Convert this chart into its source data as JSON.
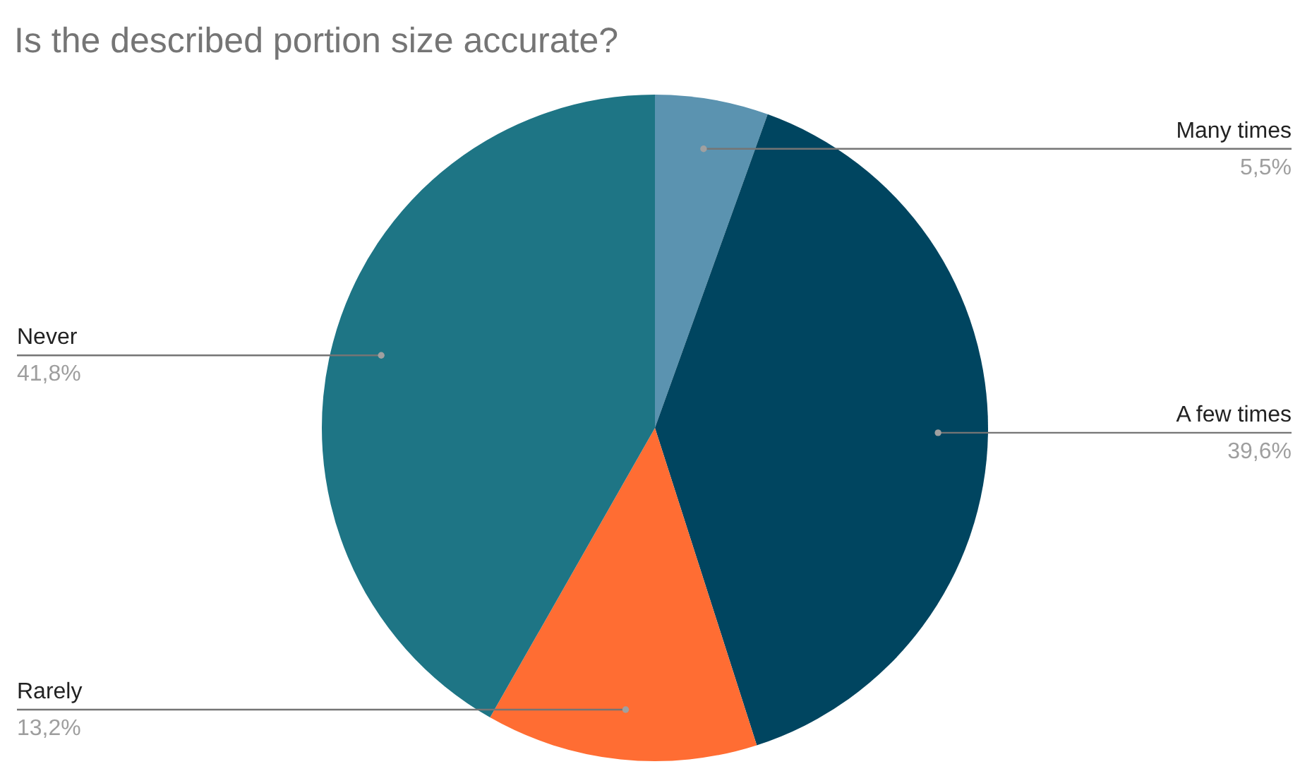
{
  "chart_data": {
    "type": "pie",
    "title": "Is the described portion size accurate?",
    "categories": [
      "Many times",
      "A few times",
      "Rarely",
      "Never"
    ],
    "values": [
      5.5,
      39.6,
      13.2,
      41.8
    ],
    "value_labels": [
      "5,5%",
      "39,6%",
      "13,2%",
      "41,8%"
    ],
    "colors": [
      "#5b93b0",
      "#004560",
      "#ff6d33",
      "#1e7585"
    ]
  }
}
